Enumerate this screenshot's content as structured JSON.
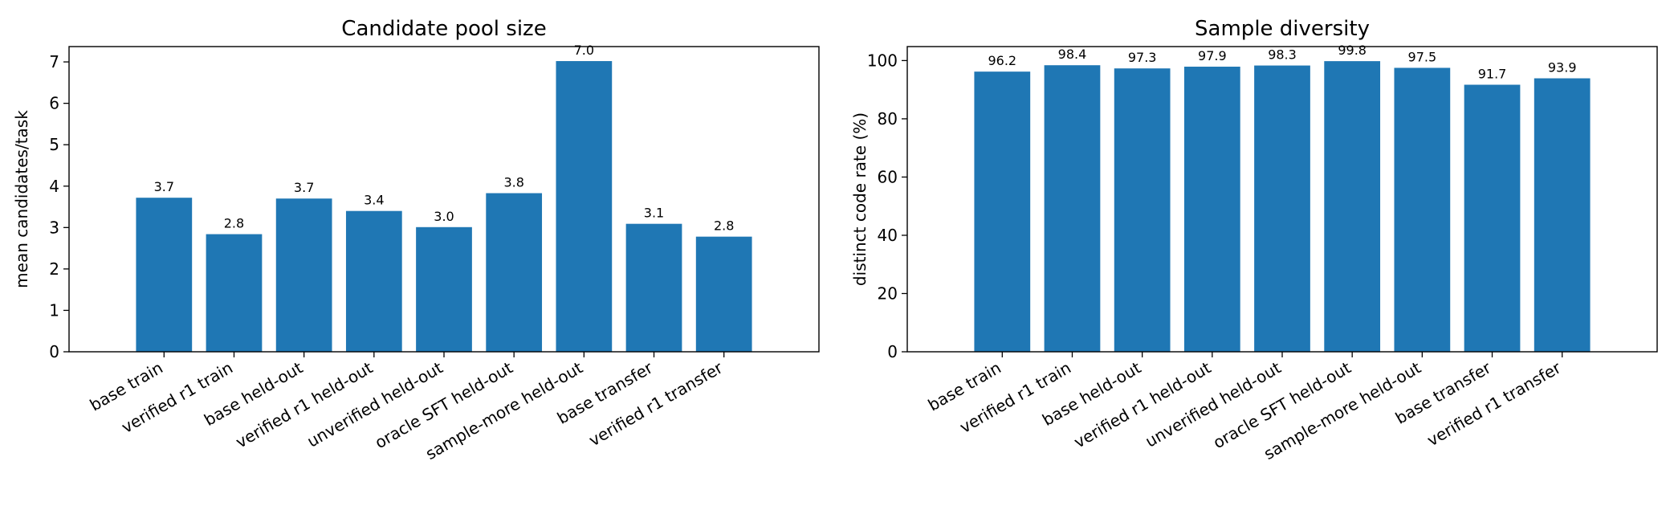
{
  "chart_data": [
    {
      "type": "bar",
      "title": "Candidate pool size",
      "xlabel": "",
      "ylabel": "mean candidates/task",
      "categories": [
        "base train",
        "verified r1 train",
        "base held-out",
        "verified r1 held-out",
        "unverified held-out",
        "oracle SFT held-out",
        "sample-more held-out",
        "base transfer",
        "verified r1 transfer"
      ],
      "values": [
        3.72,
        2.84,
        3.7,
        3.4,
        3.01,
        3.83,
        7.02,
        3.09,
        2.78
      ],
      "value_labels": [
        "3.7",
        "2.8",
        "3.7",
        "3.4",
        "3.0",
        "3.8",
        "7.0",
        "3.1",
        "2.8"
      ],
      "ylim": [
        0,
        7.37
      ],
      "yticks": [
        0,
        1,
        2,
        3,
        4,
        5,
        6,
        7
      ],
      "ytick_labels": [
        "0",
        "1",
        "2",
        "3",
        "4",
        "5",
        "6",
        "7"
      ],
      "grid": false,
      "color": "#1f77b4"
    },
    {
      "type": "bar",
      "title": "Sample diversity",
      "xlabel": "",
      "ylabel": "distinct code rate (%)",
      "categories": [
        "base train",
        "verified r1 train",
        "base held-out",
        "verified r1 held-out",
        "unverified held-out",
        "oracle SFT held-out",
        "sample-more held-out",
        "base transfer",
        "verified r1 transfer"
      ],
      "values": [
        96.2,
        98.4,
        97.3,
        97.9,
        98.3,
        99.8,
        97.5,
        91.7,
        93.9
      ],
      "value_labels": [
        "96.2",
        "98.4",
        "97.3",
        "97.9",
        "98.3",
        "99.8",
        "97.5",
        "91.7",
        "93.9"
      ],
      "ylim": [
        0,
        104.8
      ],
      "yticks": [
        0,
        20,
        40,
        60,
        80,
        100
      ],
      "ytick_labels": [
        "0",
        "20",
        "40",
        "60",
        "80",
        "100"
      ],
      "grid": false,
      "color": "#1f77b4"
    }
  ]
}
